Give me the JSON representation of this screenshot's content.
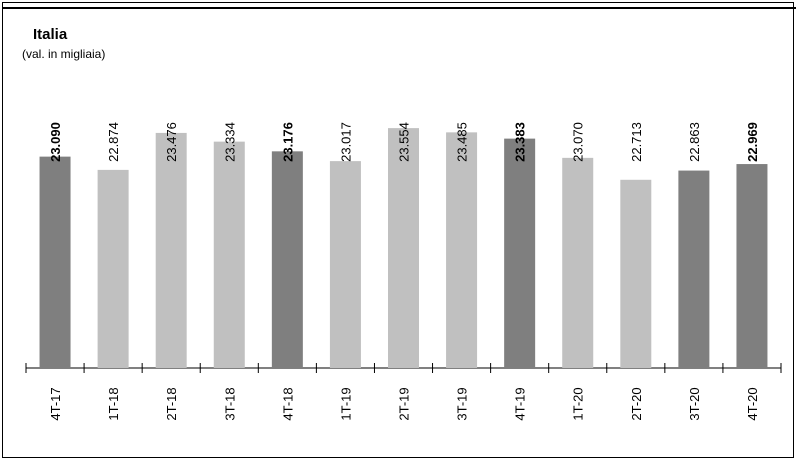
{
  "chart_data": {
    "type": "bar",
    "title": "Italia",
    "subtitle": "(val. in migliaia)",
    "categories": [
      "4T-17",
      "1T-18",
      "2T-18",
      "3T-18",
      "4T-18",
      "1T-19",
      "2T-19",
      "3T-19",
      "4T-19",
      "1T-20",
      "2T-20",
      "3T-20",
      "4T-20"
    ],
    "values": [
      23090,
      22874,
      23476,
      23334,
      23176,
      23017,
      23554,
      23485,
      23383,
      23070,
      22713,
      22863,
      22969
    ],
    "value_labels": [
      "23.090",
      "22.874",
      "23.476",
      "23.334",
      "23.176",
      "23.017",
      "23.554",
      "23.485",
      "23.383",
      "23.070",
      "22.713",
      "22.863",
      "22.969"
    ],
    "highlighted": [
      true,
      false,
      false,
      false,
      true,
      false,
      false,
      false,
      true,
      false,
      false,
      true,
      true
    ],
    "bold_labels": [
      true,
      false,
      false,
      false,
      true,
      false,
      false,
      false,
      true,
      false,
      false,
      false,
      true
    ],
    "ylim": [
      19650,
      23800
    ],
    "colors": {
      "highlight": "#7f7f7f",
      "normal": "#c0c0c0"
    },
    "grid": false,
    "legend": "none"
  }
}
